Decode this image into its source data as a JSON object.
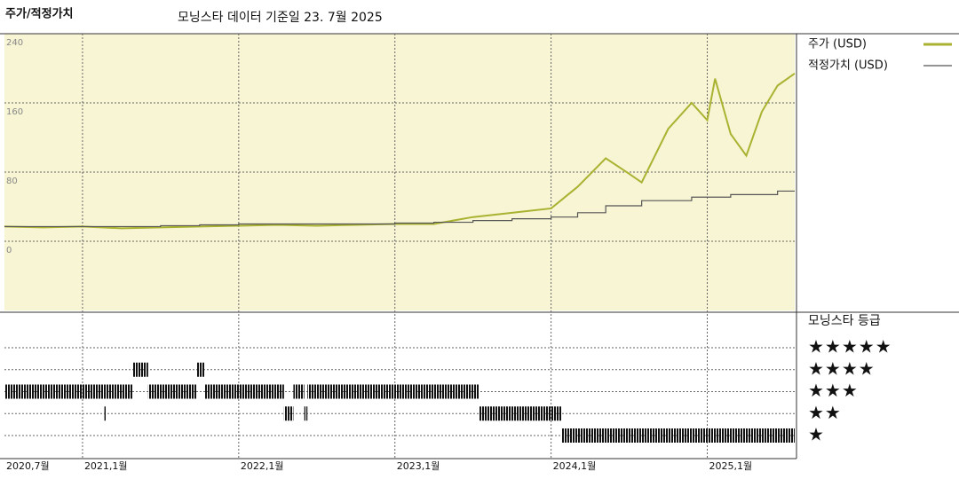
{
  "chart_data": {
    "type": "line",
    "title": "주가/적정가치",
    "subtitle": "모닝스타 데이터 기준일 23. 7월 2025",
    "x": [
      2020.5,
      2020.75,
      2021.0,
      2021.25,
      2021.5,
      2021.75,
      2022.0,
      2022.25,
      2022.5,
      2022.75,
      2023.0,
      2023.25,
      2023.5,
      2023.75,
      2024.0,
      2024.17,
      2024.35,
      2024.5,
      2024.58,
      2024.75,
      2024.9,
      2025.0,
      2025.05,
      2025.15,
      2025.25,
      2025.35,
      2025.45,
      2025.56
    ],
    "series": [
      {
        "name": "주가 (USD)",
        "color": "#a9b231",
        "drawstyle": "line",
        "values": [
          17,
          16,
          17,
          15,
          16,
          17,
          18,
          19,
          18,
          19,
          20,
          20,
          28,
          33,
          38,
          63,
          96,
          78,
          68,
          130,
          160,
          140,
          188,
          124,
          99,
          150,
          180,
          194
        ]
      },
      {
        "name": "적정가치 (USD)",
        "color": "#555555",
        "drawstyle": "steps-post",
        "values": [
          17,
          17,
          17,
          17,
          18,
          19,
          20,
          20,
          20,
          20,
          21,
          22,
          24,
          26,
          28,
          33,
          41,
          41,
          47,
          47,
          51,
          51,
          51,
          54,
          54,
          54,
          58,
          58
        ]
      }
    ],
    "xlim": [
      2020.5,
      2025.56
    ],
    "xticks": [
      {
        "value": 2020.5,
        "label": "2020,7월"
      },
      {
        "value": 2021.0,
        "label": "2021,1월"
      },
      {
        "value": 2022.0,
        "label": "2022,1월"
      },
      {
        "value": 2023.0,
        "label": "2023,1월"
      },
      {
        "value": 2024.0,
        "label": "2024,1월"
      },
      {
        "value": 2025.0,
        "label": "2025,1월"
      }
    ],
    "ylim": [
      -80,
      240
    ],
    "yticks": [
      0,
      80,
      160,
      240
    ],
    "grid": true,
    "rating": {
      "title": "모닝스타 등급",
      "levels": [
        {
          "value": 5,
          "label": "★★★★★"
        },
        {
          "value": 4,
          "label": "★★★★"
        },
        {
          "value": 3,
          "label": "★★★"
        },
        {
          "value": 2,
          "label": "★★"
        },
        {
          "value": 1,
          "label": "★"
        }
      ],
      "segments": [
        {
          "start": 2020.5,
          "end": 2021.32,
          "stars": 3
        },
        {
          "start": 2021.14,
          "end": 2021.15,
          "stars": 2
        },
        {
          "start": 2021.32,
          "end": 2021.42,
          "stars": 4
        },
        {
          "start": 2021.42,
          "end": 2021.73,
          "stars": 3
        },
        {
          "start": 2021.73,
          "end": 2021.78,
          "stars": 4
        },
        {
          "start": 2021.78,
          "end": 2022.29,
          "stars": 3
        },
        {
          "start": 2022.29,
          "end": 2022.35,
          "stars": 2
        },
        {
          "start": 2022.35,
          "end": 2022.42,
          "stars": 3
        },
        {
          "start": 2022.42,
          "end": 2022.44,
          "stars": 2
        },
        {
          "start": 2022.44,
          "end": 2023.54,
          "stars": 3
        },
        {
          "start": 2023.54,
          "end": 2024.07,
          "stars": 2
        },
        {
          "start": 2024.07,
          "end": 2025.56,
          "stars": 1
        }
      ]
    }
  }
}
